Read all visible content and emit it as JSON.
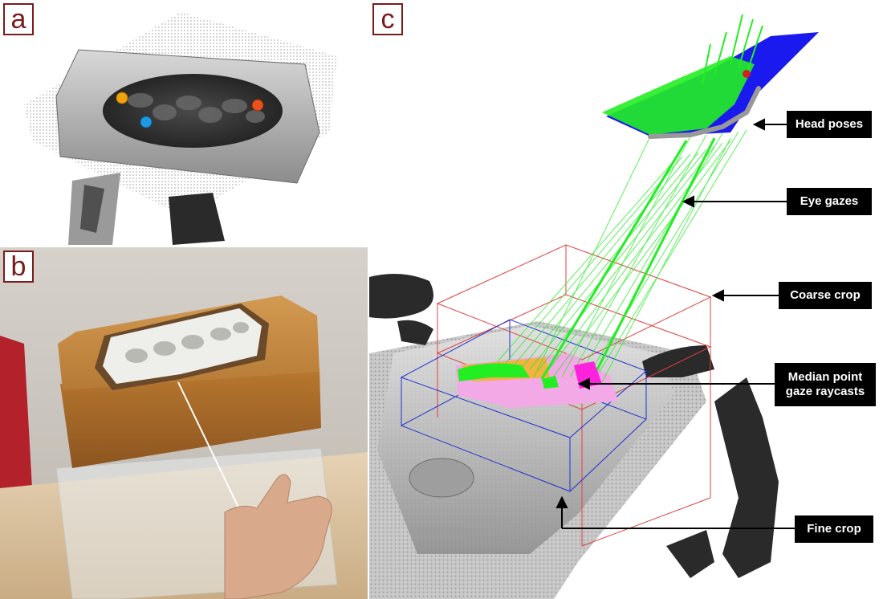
{
  "panels": {
    "a": {
      "label": "a"
    },
    "b": {
      "label": "b"
    },
    "c": {
      "label": "c"
    }
  },
  "callouts": {
    "head_poses": "Head poses",
    "eye_gazes": "Eye gazes",
    "coarse_crop": "Coarse crop",
    "median_point_line1": "Median point",
    "median_point_line2": "gaze raycasts",
    "fine_crop": "Fine crop"
  },
  "colors": {
    "label_border": "#7a1a1a",
    "gaze": "#22ee22",
    "head_pose": "#1a1aee",
    "coarse_crop": "#e04040",
    "fine_crop": "#2030d0",
    "median": "#ff22dd",
    "callout_bg": "#000000"
  },
  "markers": [
    {
      "name": "marker-yellow",
      "color": "#f3a20f"
    },
    {
      "name": "marker-blue",
      "color": "#1e9be0"
    },
    {
      "name": "marker-red",
      "color": "#e8531d"
    }
  ]
}
